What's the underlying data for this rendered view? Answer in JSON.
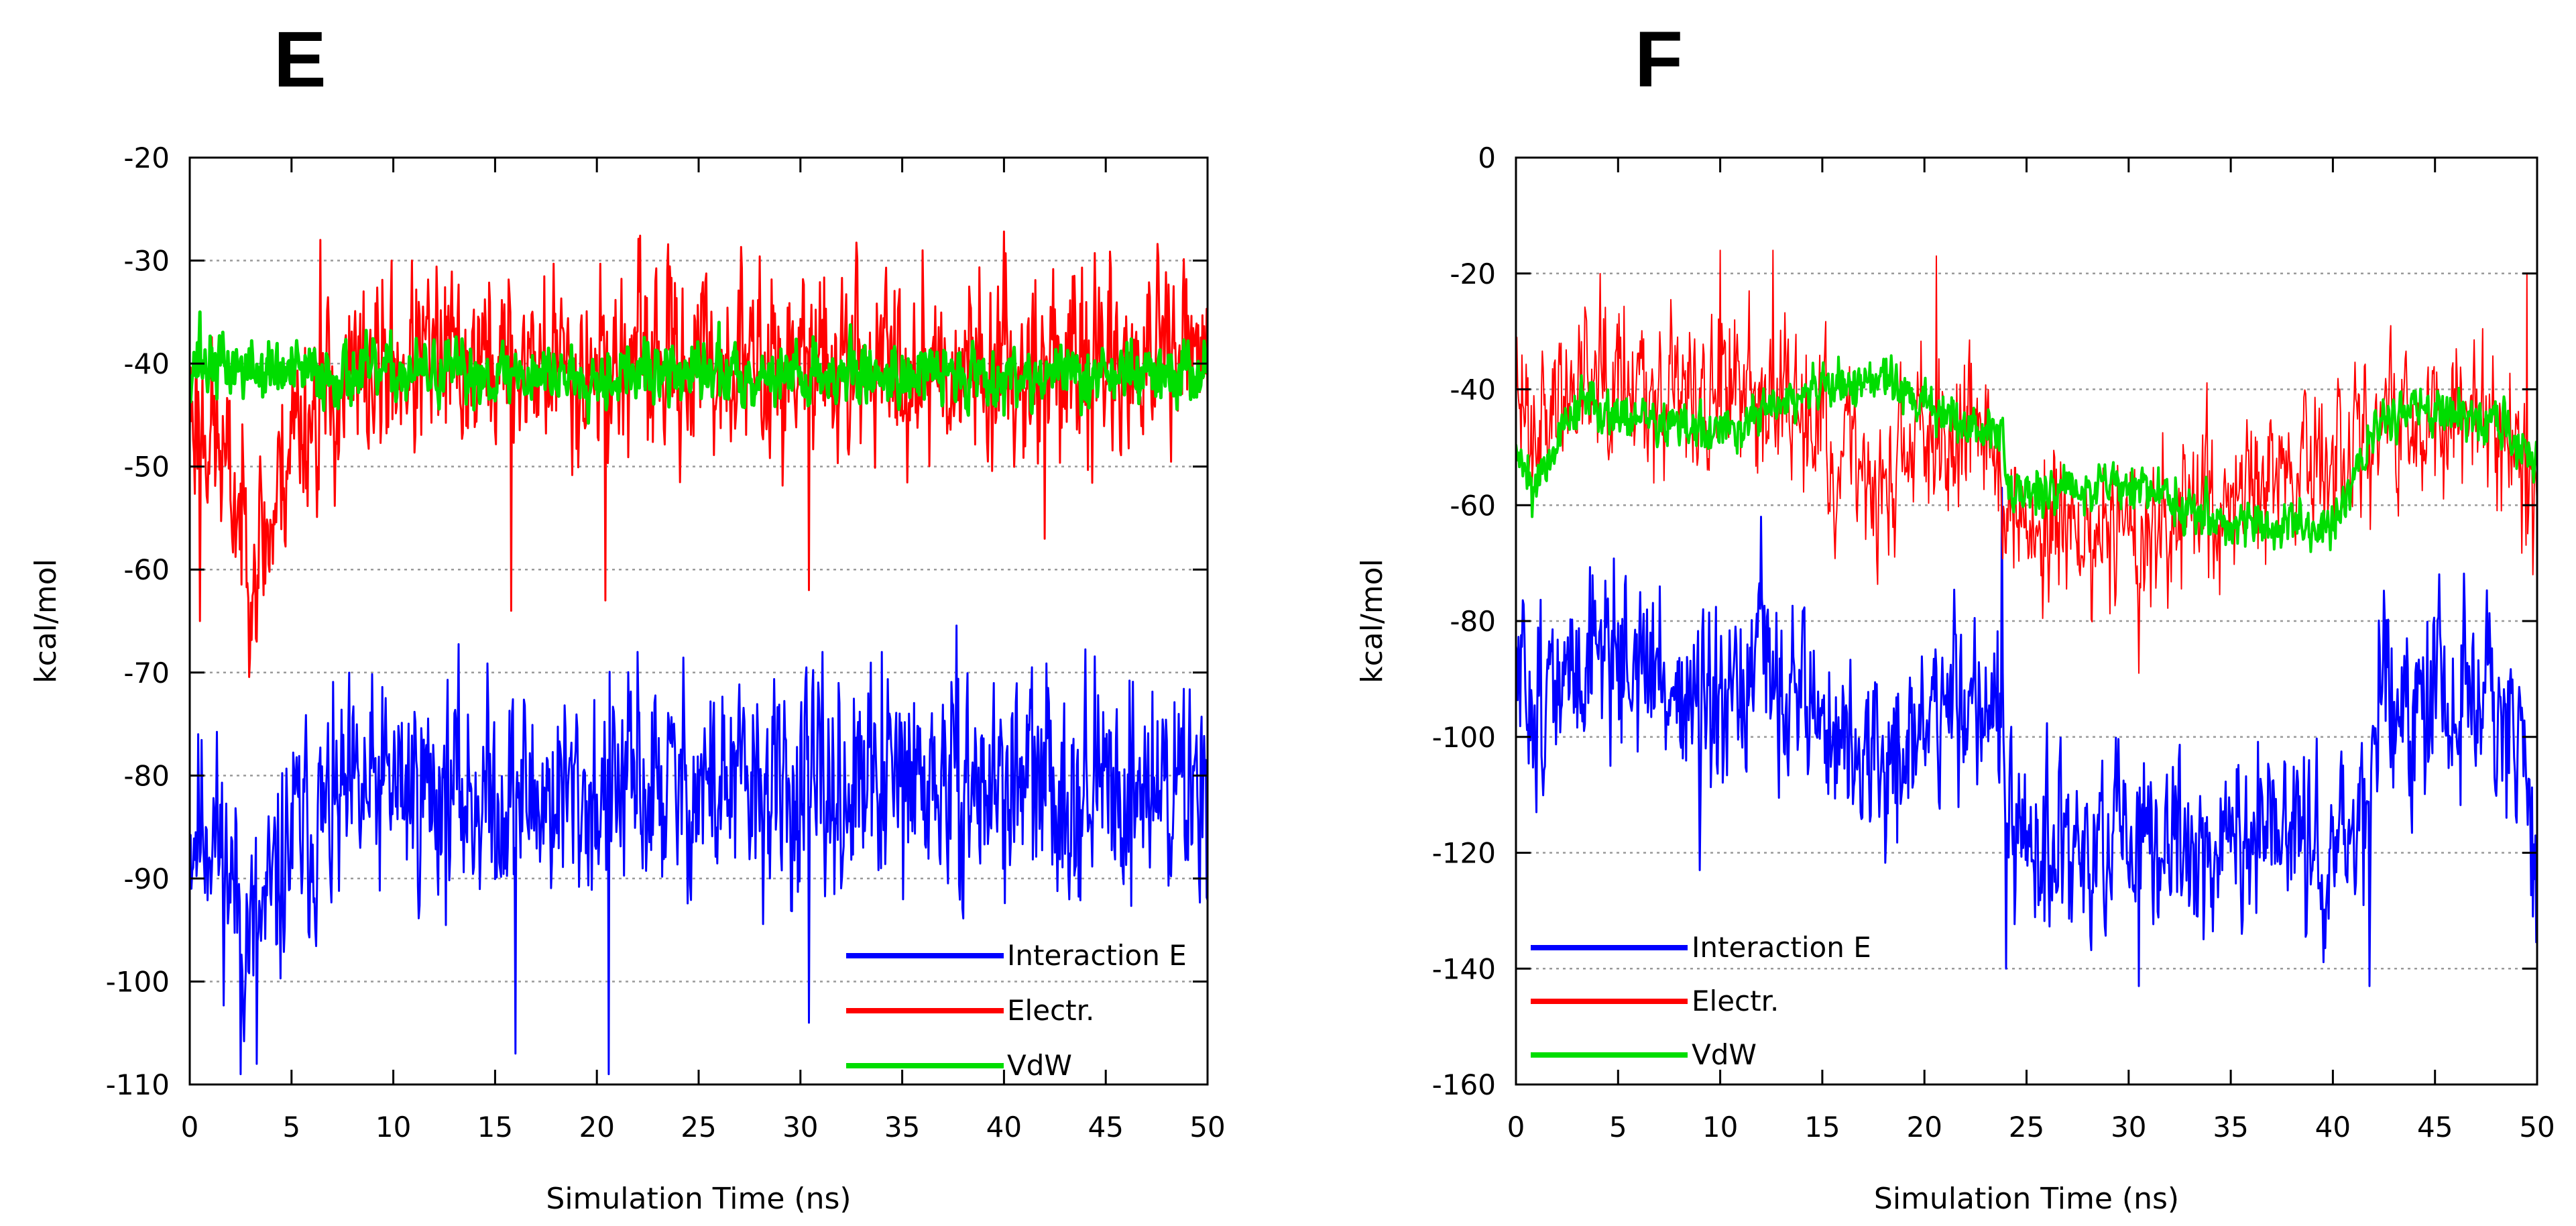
{
  "colors": {
    "interaction": "#0000ff",
    "electr": "#ff0000",
    "vdw": "#00dd00",
    "grid": "#9a9a9a"
  },
  "chart_data": [
    {
      "type": "line",
      "panel_label": "E",
      "xlabel": "Simulation Time (ns)",
      "ylabel": "kcal/mol",
      "xlim": [
        0,
        50
      ],
      "ylim": [
        -110,
        -20
      ],
      "xticks": [
        0,
        5,
        10,
        15,
        20,
        25,
        30,
        35,
        40,
        45,
        50
      ],
      "xtick_labels": [
        "0",
        "5",
        "10",
        "15",
        "20",
        "25",
        "30",
        "35",
        "40",
        "45",
        "50"
      ],
      "yticks": [
        -20,
        -30,
        -40,
        -50,
        -60,
        -70,
        -80,
        -90,
        -100,
        -110
      ],
      "ytick_labels": [
        "-20",
        "-30",
        "-40",
        "-50",
        "-60",
        "-70",
        "-80",
        "-90",
        "-100",
        "-110"
      ],
      "grid": true,
      "legend_position": "bottom-right",
      "series": [
        {
          "name": "Interaction E",
          "color": "#0000ff",
          "stroke_width": 3,
          "noise": 7.5,
          "seed": 11,
          "x": [
            0,
            1,
            2,
            3,
            4,
            5,
            8,
            10,
            15,
            20,
            25,
            30,
            35,
            40,
            45,
            50
          ],
          "y": [
            -85,
            -84,
            -90,
            -96,
            -93,
            -86,
            -83,
            -81,
            -82,
            -82,
            -81,
            -82,
            -81,
            -81,
            -81,
            -81
          ],
          "spikes": [
            [
              2.5,
              -109
            ],
            [
              3.3,
              -108
            ],
            [
              16,
              -107
            ],
            [
              20.6,
              -109
            ],
            [
              30.4,
              -104
            ],
            [
              22,
              -68
            ],
            [
              34,
              -68
            ]
          ]
        },
        {
          "name": "Electr.",
          "color": "#ff0000",
          "stroke_width": 3,
          "noise": 6.5,
          "seed": 23,
          "x": [
            0,
            1,
            2,
            3,
            4,
            5,
            8,
            10,
            15,
            20,
            25,
            30,
            35,
            40,
            45,
            50
          ],
          "y": [
            -44,
            -46,
            -52,
            -58,
            -56,
            -46,
            -42,
            -40,
            -40,
            -40,
            -40,
            -40,
            -40,
            -40,
            -40,
            -40
          ],
          "spikes": [
            [
              0.5,
              -65
            ],
            [
              3.3,
              -67
            ],
            [
              6.4,
              -28
            ],
            [
              15.8,
              -64
            ],
            [
              20.4,
              -63
            ],
            [
              30.4,
              -62
            ],
            [
              36,
              -29
            ],
            [
              42,
              -57
            ]
          ]
        },
        {
          "name": "VdW",
          "color": "#00dd00",
          "stroke_width": 5,
          "noise": 2.2,
          "seed": 37,
          "x": [
            0,
            5,
            10,
            15,
            20,
            25,
            30,
            35,
            40,
            45,
            50
          ],
          "y": [
            -40,
            -41,
            -41,
            -41,
            -41,
            -41,
            -41,
            -41,
            -41,
            -41,
            -41
          ],
          "spikes": [
            [
              0.5,
              -35
            ],
            [
              26,
              -36
            ],
            [
              40,
              -45
            ]
          ]
        }
      ],
      "legend": [
        {
          "label": "Interaction E",
          "color": "#0000ff"
        },
        {
          "label": "Electr.",
          "color": "#ff0000"
        },
        {
          "label": "VdW",
          "color": "#00dd00"
        }
      ]
    },
    {
      "type": "line",
      "panel_label": "F",
      "xlabel": "Simulation Time (ns)",
      "ylabel": "kcal/mol",
      "xlim": [
        0,
        50
      ],
      "ylim": [
        -160,
        0
      ],
      "xticks": [
        0,
        5,
        10,
        15,
        20,
        25,
        30,
        35,
        40,
        45,
        50
      ],
      "xtick_labels": [
        "0",
        "5",
        "10",
        "15",
        "20",
        "25",
        "30",
        "35",
        "40",
        "45",
        "50"
      ],
      "yticks": [
        0,
        -20,
        -40,
        -60,
        -80,
        -100,
        -120,
        -140,
        -160
      ],
      "ytick_labels": [
        "0",
        "-20",
        "-40",
        "-60",
        "-80",
        "-100",
        "-120",
        "-140",
        "-160"
      ],
      "grid": true,
      "legend_position": "bottom-left",
      "series": [
        {
          "name": "Interaction E",
          "color": "#0000ff",
          "stroke_width": 3,
          "noise": 11,
          "seed": 51,
          "x": [
            0,
            2,
            4,
            6,
            8,
            10,
            12,
            14,
            16,
            18,
            20,
            22,
            23.8,
            24,
            26,
            30,
            35,
            40,
            41.8,
            42,
            45,
            48,
            49.5,
            50
          ],
          "y": [
            -90,
            -94,
            -82,
            -88,
            -92,
            -100,
            -88,
            -92,
            -102,
            -106,
            -98,
            -92,
            -94,
            -120,
            -120,
            -120,
            -118,
            -118,
            -118,
            -95,
            -92,
            -95,
            -110,
            -125
          ],
          "spikes": [
            [
              1,
              -113
            ],
            [
              9,
              -123
            ],
            [
              12,
              -62
            ],
            [
              23.8,
              -57
            ],
            [
              24,
              -140
            ],
            [
              30.5,
              -143
            ],
            [
              41.8,
              -143
            ],
            [
              49.8,
              -131
            ]
          ]
        },
        {
          "name": "Electr.",
          "color": "#ff0000",
          "stroke_width": 2,
          "noise": 10,
          "seed": 63,
          "x": [
            0,
            2,
            4,
            6,
            8,
            10,
            12,
            14,
            16,
            18,
            20,
            22,
            23.8,
            24,
            26,
            30,
            35,
            40,
            42,
            45,
            48,
            50
          ],
          "y": [
            -42,
            -44,
            -32,
            -38,
            -40,
            -42,
            -38,
            -45,
            -52,
            -58,
            -46,
            -44,
            -48,
            -62,
            -64,
            -66,
            -58,
            -54,
            -46,
            -44,
            -44,
            -58
          ],
          "spikes": [
            [
              10,
              -16
            ],
            [
              12.6,
              -16
            ],
            [
              20.6,
              -17
            ],
            [
              30.5,
              -89
            ],
            [
              49.5,
              -20
            ],
            [
              49.8,
              -72
            ]
          ]
        },
        {
          "name": "VdW",
          "color": "#00dd00",
          "stroke_width": 4,
          "noise": 3,
          "seed": 79,
          "x": [
            0,
            1,
            3,
            6,
            10,
            12,
            15,
            18,
            20,
            22,
            23.8,
            24,
            26,
            30,
            35,
            40,
            42,
            45,
            48,
            50
          ],
          "y": [
            -50,
            -56,
            -42,
            -45,
            -48,
            -44,
            -40,
            -38,
            -43,
            -46,
            -47,
            -58,
            -57,
            -56,
            -63,
            -64,
            -46,
            -43,
            -46,
            -52
          ],
          "spikes": [
            [
              0.8,
              -62
            ]
          ]
        }
      ],
      "legend": [
        {
          "label": "Interaction E",
          "color": "#0000ff"
        },
        {
          "label": "Electr.",
          "color": "#ff0000"
        },
        {
          "label": "VdW",
          "color": "#00dd00"
        }
      ]
    }
  ]
}
